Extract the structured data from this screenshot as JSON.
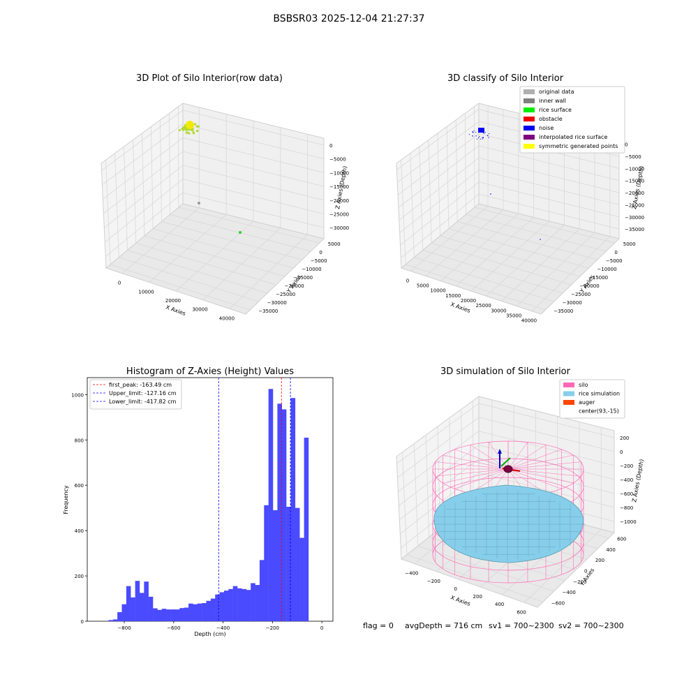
{
  "figure": {
    "suptitle": "BSBSR03 2025-12-04 21:27:37",
    "status": {
      "flag": "flag = 0",
      "avg_depth": "avgDepth = 716 cm",
      "sv1": "sv1 = 700~2300",
      "sv2": "sv2 = 700~2300"
    }
  },
  "chart_data": [
    {
      "type": "scatter",
      "title": "3D Plot of Silo Interior(row data)",
      "xlabel": "X Axies",
      "ylabel": "Y Axies",
      "zlabel": "Z Axies (Depth)",
      "xticks": [
        "0",
        "10000",
        "20000",
        "30000",
        "40000"
      ],
      "yticks": [
        "5000",
        "0",
        "−5000",
        "−10000",
        "−15000",
        "−20000",
        "−25000",
        "−30000",
        "−35000"
      ],
      "zticks": [
        "0",
        "−5000",
        "−10000",
        "−15000",
        "−20000",
        "−25000",
        "−30000"
      ],
      "points": [
        {
          "x": 0,
          "y": 0,
          "z": 0,
          "color": "#c8e02a",
          "note": "cluster"
        },
        {
          "x": 5000,
          "y": 0,
          "z": -25000,
          "color": "#999999"
        },
        {
          "x": 30000,
          "y": -5000,
          "z": -30000,
          "color": "#33cc33"
        }
      ],
      "colors": {
        "cluster": "#f2ea00",
        "cluster_edge": "#b4d832"
      }
    },
    {
      "type": "scatter",
      "title": "3D classify of Silo Interior",
      "xlabel": "X Axies",
      "ylabel": "Y Axies",
      "zlabel": "Z Axies (Depth)",
      "xticks": [
        "0",
        "5000",
        "10000",
        "15000",
        "20000",
        "25000",
        "30000",
        "35000",
        "40000"
      ],
      "yticks": [
        "5000",
        "0",
        "−5000",
        "−10000",
        "−15000",
        "−20000",
        "−25000",
        "−30000",
        "−35000"
      ],
      "zticks": [
        "0",
        "−5000",
        "−10000",
        "−15000",
        "−20000",
        "−25000",
        "−30000",
        "−35000"
      ],
      "legend": [
        {
          "label": "original data",
          "color": "#b0b0b0"
        },
        {
          "label": "inner wall",
          "color": "#808080"
        },
        {
          "label": "rice surface",
          "color": "#00ee00"
        },
        {
          "label": "obstacle",
          "color": "#ee0000"
        },
        {
          "label": "noise",
          "color": "#0000ee"
        },
        {
          "label": "interpolated rice surface",
          "color": "#800080"
        },
        {
          "label": "symmetric generated points",
          "color": "#ffff00"
        }
      ],
      "legend_loc": "upper right"
    },
    {
      "type": "bar",
      "title": "Histogram of Z-Axies (Height) Values",
      "xlabel": "Depth (cm)",
      "ylabel": "Frequency",
      "xlim": [
        -950,
        45
      ],
      "ylim": [
        0,
        1075
      ],
      "xticks": [
        -800,
        -600,
        -400,
        -200,
        0
      ],
      "yticks": [
        0,
        200,
        400,
        600,
        800,
        1000
      ],
      "bin_width": 18,
      "bin_start": -882,
      "values": [
        0,
        5,
        8,
        40,
        75,
        155,
        105,
        178,
        125,
        175,
        108,
        57,
        50,
        55,
        52,
        52,
        52,
        58,
        60,
        78,
        75,
        78,
        80,
        90,
        100,
        118,
        128,
        135,
        142,
        155,
        145,
        142,
        138,
        168,
        160,
        270,
        512,
        1025,
        490,
        960,
        935,
        505,
        985,
        500,
        368,
        810
      ],
      "bar_color": "#4a4aff",
      "vlines": [
        {
          "label": "first_peak: -163.49 cm",
          "x": -163.49,
          "color": "#ee0000"
        },
        {
          "label": "Upper_limit: -127.16 cm",
          "x": -127.16,
          "color": "#0000ee"
        },
        {
          "label": "Lower_limit: -417.82 cm",
          "x": -417.82,
          "color": "#0000ee"
        }
      ],
      "legend_loc": "upper left"
    },
    {
      "type": "scatter",
      "title": "3D simulation of Silo Interior",
      "xlabel": "X Axies",
      "ylabel": "Y Axies",
      "zlabel": "Z Axies (Depth)",
      "xticks": [
        "−400",
        "−200",
        "0",
        "200",
        "400",
        "600"
      ],
      "yticks": [
        "600",
        "400",
        "200",
        "0",
        "−200",
        "−400",
        "−600"
      ],
      "zticks": [
        "200",
        "0",
        "−200",
        "−400",
        "−600",
        "−800",
        "−1000"
      ],
      "legend": [
        {
          "label": "silo",
          "color": "#ff69b4"
        },
        {
          "label": "rice simulation",
          "color": "#87ceeb"
        },
        {
          "label": "auger",
          "color": "#ff4500"
        },
        {
          "label": "center(93,-15)",
          "color": "#ffffff"
        }
      ],
      "legend_loc": "upper right",
      "colors": {
        "silo": "#ff69b4",
        "rice": "#87ceeb",
        "rice_mesh": "#5b9cae",
        "auger": "#800040"
      }
    }
  ]
}
